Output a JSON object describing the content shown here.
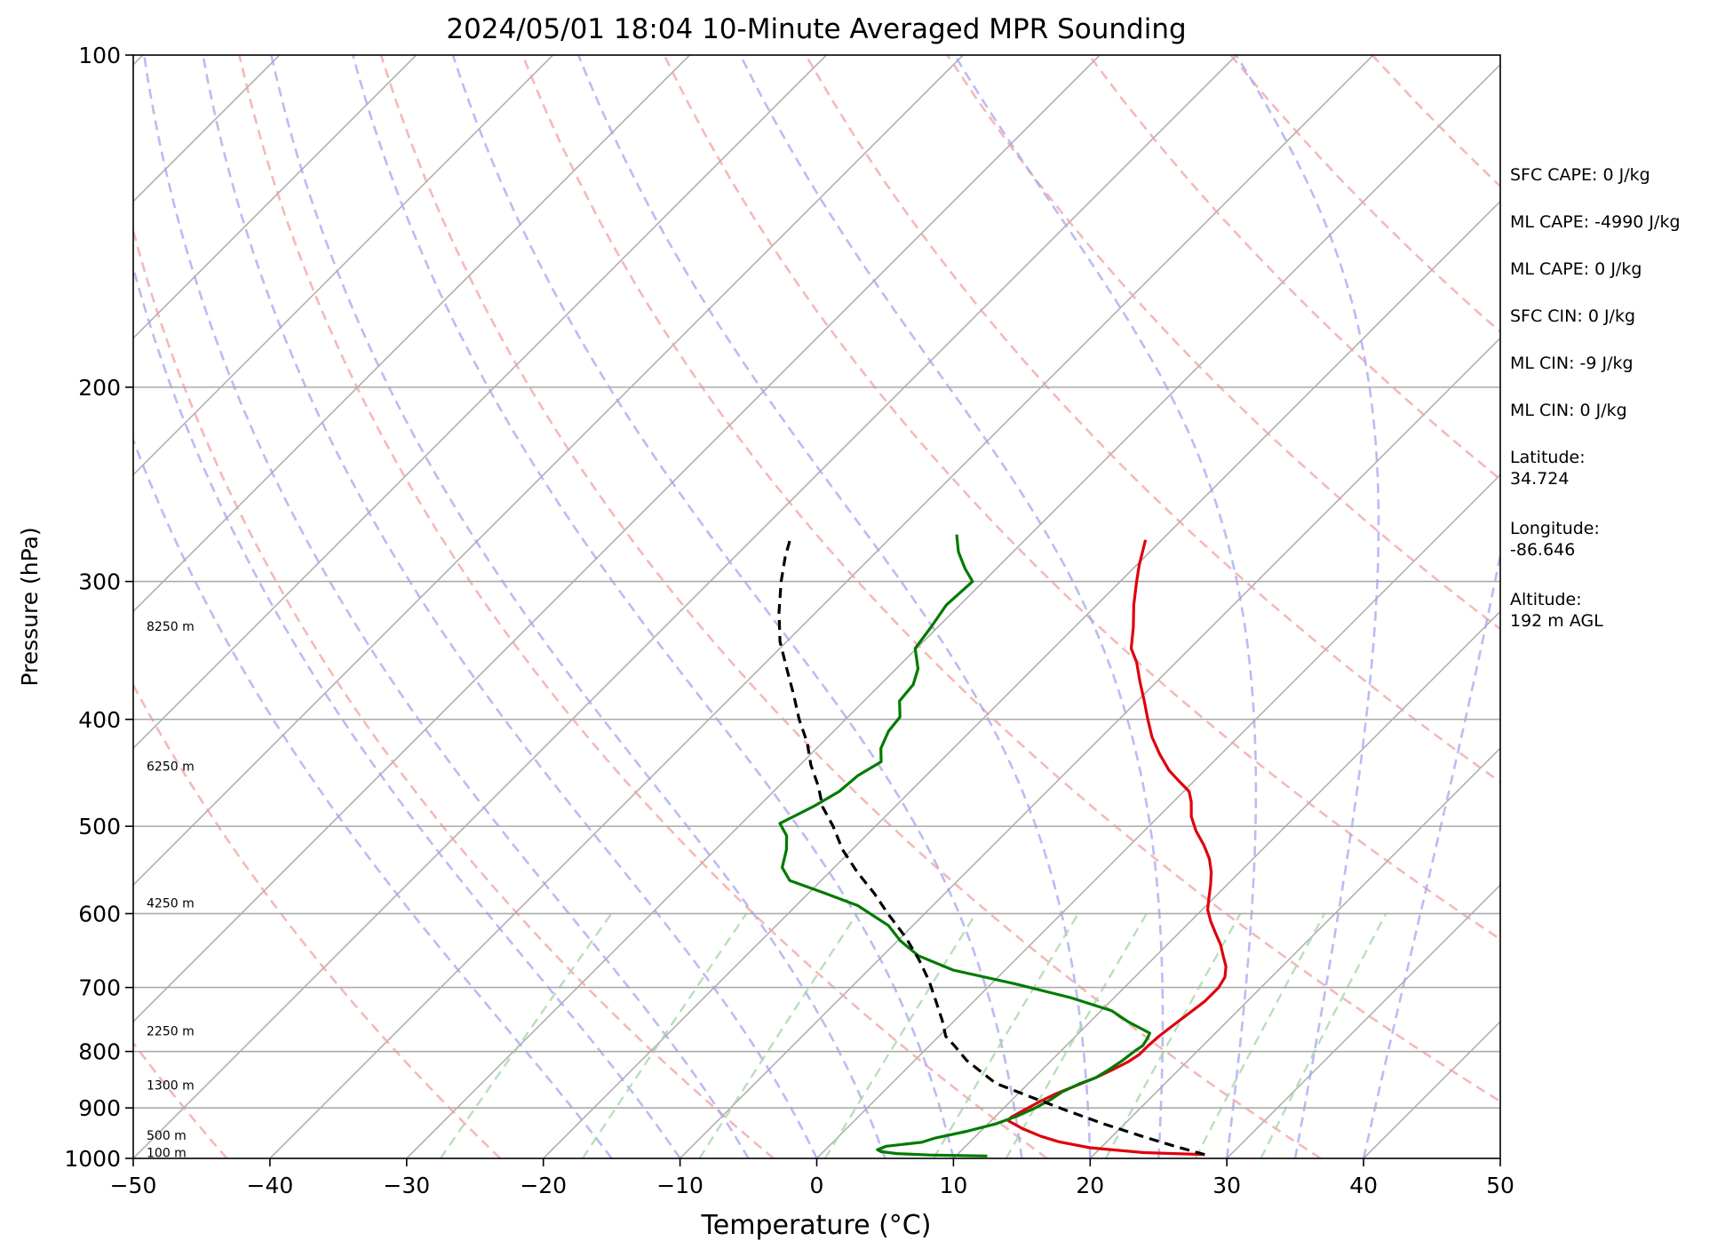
{
  "chart_data": {
    "type": "line",
    "title": "2024/05/01 18:04 10-Minute Averaged MPR Sounding",
    "xlabel": "Temperature (°C)",
    "ylabel": "Pressure (hPa)",
    "xlim": [
      -50,
      50
    ],
    "ylim": [
      1000,
      100
    ],
    "yscale": "log",
    "skew": "skew-T",
    "grid": true,
    "xticks": [
      "−50",
      "−40",
      "−30",
      "−20",
      "−10",
      "0",
      "10",
      "20",
      "30",
      "40",
      "50"
    ],
    "yticks": [
      "100",
      "200",
      "300",
      "400",
      "500",
      "600",
      "700",
      "800",
      "900",
      "1000"
    ],
    "height_labels": [
      {
        "p": 330,
        "text": "8250 m"
      },
      {
        "p": 442,
        "text": "6250 m"
      },
      {
        "p": 588,
        "text": "4250 m"
      },
      {
        "p": 768,
        "text": "2250 m"
      },
      {
        "p": 860,
        "text": "1300 m"
      },
      {
        "p": 955,
        "text": "500 m"
      },
      {
        "p": 990,
        "text": "100 m"
      }
    ],
    "series": [
      {
        "role": "temperature",
        "color": "#e0000b",
        "points": [
          [
            992,
            28.1
          ],
          [
            988,
            23.5
          ],
          [
            978,
            19.2
          ],
          [
            966,
            16.5
          ],
          [
            955,
            14.8
          ],
          [
            940,
            12.9
          ],
          [
            925,
            11.3
          ],
          [
            918,
            11.2
          ],
          [
            905,
            11.6
          ],
          [
            890,
            12.1
          ],
          [
            875,
            12.7
          ],
          [
            860,
            13.6
          ],
          [
            845,
            14.5
          ],
          [
            830,
            15.2
          ],
          [
            818,
            15.7
          ],
          [
            805,
            16.0
          ],
          [
            790,
            16.0
          ],
          [
            775,
            16.1
          ],
          [
            760,
            16.3
          ],
          [
            740,
            16.6
          ],
          [
            720,
            16.9
          ],
          [
            700,
            16.9
          ],
          [
            685,
            16.6
          ],
          [
            670,
            15.9
          ],
          [
            655,
            14.9
          ],
          [
            640,
            13.9
          ],
          [
            625,
            12.7
          ],
          [
            610,
            11.5
          ],
          [
            595,
            10.4
          ],
          [
            580,
            9.6
          ],
          [
            565,
            8.8
          ],
          [
            550,
            7.9
          ],
          [
            535,
            6.8
          ],
          [
            520,
            5.4
          ],
          [
            505,
            3.8
          ],
          [
            490,
            2.4
          ],
          [
            475,
            1.3
          ],
          [
            465,
            0.4
          ],
          [
            455,
            -1.1
          ],
          [
            445,
            -2.6
          ],
          [
            430,
            -4.5
          ],
          [
            415,
            -6.3
          ],
          [
            400,
            -7.9
          ],
          [
            385,
            -9.5
          ],
          [
            370,
            -11.2
          ],
          [
            355,
            -12.9
          ],
          [
            345,
            -14.3
          ],
          [
            330,
            -15.7
          ],
          [
            315,
            -17.3
          ],
          [
            300,
            -18.8
          ],
          [
            290,
            -19.8
          ],
          [
            275,
            -21.2
          ]
        ]
      },
      {
        "role": "dewpoint",
        "color": "#007a00",
        "points": [
          [
            995,
            12.3
          ],
          [
            993,
            8.0
          ],
          [
            990,
            5.5
          ],
          [
            986,
            4.2
          ],
          [
            982,
            3.8
          ],
          [
            975,
            4.2
          ],
          [
            967,
            6.5
          ],
          [
            958,
            7.2
          ],
          [
            945,
            9.0
          ],
          [
            930,
            10.6
          ],
          [
            915,
            11.6
          ],
          [
            900,
            12.3
          ],
          [
            885,
            12.8
          ],
          [
            870,
            13.1
          ],
          [
            855,
            13.8
          ],
          [
            845,
            14.5
          ],
          [
            830,
            14.9
          ],
          [
            815,
            15.2
          ],
          [
            800,
            15.4
          ],
          [
            790,
            15.6
          ],
          [
            778,
            15.4
          ],
          [
            770,
            15.2
          ],
          [
            752,
            12.8
          ],
          [
            735,
            10.8
          ],
          [
            715,
            6.8
          ],
          [
            695,
            1.8
          ],
          [
            675,
            -3.8
          ],
          [
            655,
            -7.4
          ],
          [
            635,
            -9.8
          ],
          [
            615,
            -11.8
          ],
          [
            590,
            -15.5
          ],
          [
            575,
            -18.8
          ],
          [
            560,
            -22.3
          ],
          [
            545,
            -23.8
          ],
          [
            525,
            -24.8
          ],
          [
            510,
            -25.8
          ],
          [
            497,
            -27.2
          ],
          [
            480,
            -26.0
          ],
          [
            465,
            -25.2
          ],
          [
            450,
            -25.0
          ],
          [
            437,
            -24.3
          ],
          [
            425,
            -25.3
          ],
          [
            410,
            -26.0
          ],
          [
            398,
            -26.2
          ],
          [
            385,
            -27.4
          ],
          [
            372,
            -27.6
          ],
          [
            360,
            -28.4
          ],
          [
            345,
            -30.1
          ],
          [
            330,
            -30.5
          ],
          [
            315,
            -31.0
          ],
          [
            300,
            -30.8
          ],
          [
            292,
            -32.3
          ],
          [
            282,
            -34.0
          ],
          [
            272,
            -35.4
          ]
        ]
      },
      {
        "role": "parcel",
        "color": "#000000",
        "style": "dashed",
        "points": [
          [
            992,
            28.1
          ],
          [
            975,
            25.3
          ],
          [
            955,
            22.2
          ],
          [
            930,
            18.4
          ],
          [
            905,
            14.8
          ],
          [
            880,
            11.2
          ],
          [
            855,
            7.6
          ],
          [
            815,
            3.8
          ],
          [
            790,
            1.8
          ],
          [
            775,
            0.5
          ],
          [
            750,
            -0.9
          ],
          [
            720,
            -2.8
          ],
          [
            690,
            -4.8
          ],
          [
            660,
            -7.1
          ],
          [
            630,
            -9.7
          ],
          [
            600,
            -12.7
          ],
          [
            575,
            -15.2
          ],
          [
            550,
            -18.0
          ],
          [
            525,
            -20.7
          ],
          [
            500,
            -23.1
          ],
          [
            480,
            -25.3
          ],
          [
            460,
            -27.1
          ],
          [
            440,
            -29.2
          ],
          [
            420,
            -31.1
          ],
          [
            400,
            -33.4
          ],
          [
            380,
            -35.6
          ],
          [
            360,
            -38.0
          ],
          [
            340,
            -40.5
          ],
          [
            320,
            -42.7
          ],
          [
            300,
            -44.8
          ],
          [
            285,
            -46.3
          ],
          [
            275,
            -47.2
          ]
        ]
      }
    ],
    "skewed_isotherms_c": [
      -150,
      -140,
      -130,
      -120,
      -110,
      -100,
      -90,
      -80,
      -70,
      -60,
      -50,
      -40,
      -30,
      -20,
      -10,
      0,
      10,
      20,
      30,
      40,
      50
    ],
    "dry_adiabats_theta_k": [
      230,
      250,
      270,
      290,
      310,
      330,
      350,
      370,
      390,
      410,
      430,
      450,
      470,
      490,
      510,
      530,
      550,
      570,
      590,
      610,
      630,
      650,
      670,
      690,
      710
    ],
    "moist_adiabats_start_c": [
      -15,
      -10,
      -5,
      0,
      5,
      10,
      15,
      20,
      25,
      30,
      35,
      40
    ],
    "mixing_ratio_lines_gkg": [
      0.4,
      1,
      2,
      4,
      7,
      10,
      16,
      24,
      32
    ],
    "background_colors": {
      "dry_adiabat": "#f3a0a0",
      "moist_adiabat": "#a4a4f2",
      "mixing_ratio": "#a9d6a9",
      "isotherm": "#b0b0b0",
      "isobar": "#aaaaaa"
    }
  },
  "stats": {
    "sfc_cape": "SFC CAPE: 0 J/kg",
    "ml_cape_1": "ML CAPE: -4990 J/kg",
    "ml_cape_2": "ML CAPE: 0 J/kg",
    "sfc_cin": "SFC CIN: 0 J/kg",
    "ml_cin_1": "ML CIN: -9 J/kg",
    "ml_cin_2": "ML CIN: 0 J/kg",
    "latitude_label": "Latitude:",
    "latitude_value": "34.724",
    "longitude_label": "Longitude:",
    "longitude_value": "-86.646",
    "altitude_label": "Altitude:",
    "altitude_value": "192 m AGL"
  }
}
